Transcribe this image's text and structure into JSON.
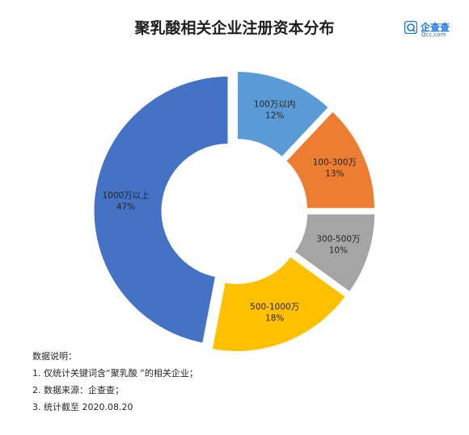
{
  "brand": {
    "name": "企查查",
    "sub": "Qcc.com",
    "color": "#1473e6"
  },
  "notes": {
    "heading": "数据说明：",
    "lines": [
      "1. 仅统计关键词含“聚乳酸 ”的相关企业；",
      "2. 数据来源：企查查；",
      "3. 统计截至 2020.08.20"
    ]
  },
  "chart_data": {
    "type": "pie",
    "variant": "donut",
    "title": "聚乳酸相关企业注册资本分布",
    "categories": [
      "100万以内",
      "100-300万",
      "300-500万",
      "500-1000万",
      "1000万以上"
    ],
    "values": [
      12,
      13,
      10,
      18,
      47
    ],
    "labels": [
      "12%",
      "13%",
      "10%",
      "18%",
      "47%"
    ],
    "colors": [
      "#5b9bd5",
      "#ed7d31",
      "#a5a5a5",
      "#ffc000",
      "#4472c4"
    ],
    "start": "top, clockwise",
    "legend": "none"
  }
}
